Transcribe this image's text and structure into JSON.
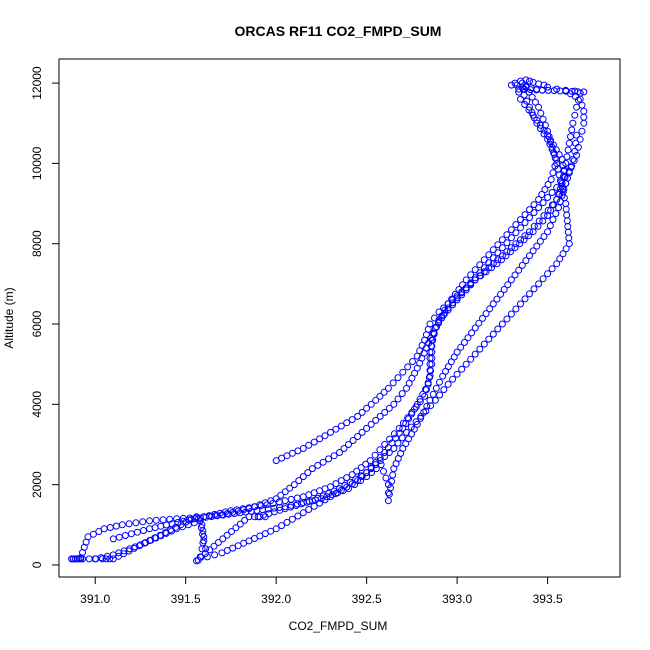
{
  "chart_data": {
    "type": "scatter",
    "title": "ORCAS RF11 CO2_FMPD_SUM",
    "xlabel": "CO2_FMPD_SUM",
    "ylabel": "Altitude (m)",
    "xlim": [
      390.8,
      393.9
    ],
    "ylim": [
      -300,
      12600
    ],
    "x_ticks": [
      391.0,
      391.5,
      392.0,
      392.5,
      393.0,
      393.5
    ],
    "x_tick_labels": [
      "391.0",
      "391.5",
      "392.0",
      "392.5",
      "393.0",
      "393.5"
    ],
    "y_ticks": [
      0,
      2000,
      4000,
      6000,
      8000,
      10000,
      12000
    ],
    "y_tick_labels": [
      "0",
      "2000",
      "4000",
      "6000",
      "8000",
      "10000",
      "12000"
    ],
    "grid": false,
    "legend": "none",
    "marker": "open-circle",
    "color": "#0000ff",
    "series": [
      {
        "x": [
          390.87,
          390.92,
          390.96,
          391.05,
          391.15,
          391.3,
          391.45,
          391.56,
          391.6,
          391.7,
          391.85,
          392.0,
          392.1,
          392.2,
          392.35,
          392.45,
          392.55,
          392.65,
          392.72,
          392.78,
          392.83,
          392.88,
          392.95,
          393.05,
          393.15,
          393.25,
          393.35,
          393.45,
          393.55,
          393.62,
          393.66,
          393.68,
          393.7,
          393.7,
          393.68,
          393.6
        ],
        "y": [
          150,
          180,
          700,
          900,
          1000,
          1100,
          1150,
          1180,
          1200,
          1250,
          1400,
          1650,
          2000,
          2400,
          2800,
          3200,
          3600,
          4000,
          4400,
          4900,
          5400,
          5900,
          6400,
          6900,
          7400,
          7900,
          8400,
          8900,
          9400,
          9800,
          10200,
          10600,
          11000,
          11300,
          11600,
          11800
        ]
      },
      {
        "x": [
          391.0,
          391.1,
          391.25,
          391.45,
          391.58,
          391.6,
          391.62,
          391.7,
          391.85,
          392.0,
          392.15,
          392.3,
          392.45,
          392.55,
          392.65,
          392.72,
          392.8,
          392.88,
          392.95,
          393.05,
          393.15,
          393.25,
          393.35,
          393.45,
          393.55,
          393.62,
          393.6,
          393.55,
          393.5,
          393.45,
          393.38
        ],
        "y": [
          150,
          250,
          500,
          900,
          1100,
          600,
          200,
          300,
          600,
          900,
          1300,
          1700,
          2100,
          2500,
          2900,
          3300,
          3700,
          4100,
          4500,
          5000,
          5500,
          6000,
          6500,
          7000,
          7500,
          8000,
          9000,
          10000,
          10800,
          11400,
          11900
        ]
      },
      {
        "x": [
          391.1,
          391.3,
          391.55,
          391.8,
          392.05,
          392.25,
          392.4,
          392.5,
          392.58,
          392.62,
          392.62,
          392.65,
          392.7,
          392.78,
          392.85,
          392.92,
          393.0,
          393.1,
          393.2,
          393.3,
          393.4,
          393.5,
          393.56,
          393.6,
          393.58,
          393.5,
          393.42,
          393.35,
          393.33
        ],
        "y": [
          650,
          900,
          1150,
          1300,
          1450,
          1650,
          1900,
          2200,
          2500,
          2000,
          1600,
          2400,
          2900,
          3500,
          4100,
          4700,
          5300,
          5900,
          6500,
          7100,
          7700,
          8300,
          8900,
          9500,
          10100,
          10700,
          11200,
          11600,
          11950
        ]
      },
      {
        "x": [
          391.6,
          391.75,
          391.95,
          392.15,
          392.3,
          392.42,
          392.52,
          392.6,
          392.68,
          392.75,
          392.82,
          392.85,
          392.85,
          392.88,
          392.95,
          393.05,
          393.15,
          393.25,
          393.35,
          393.45,
          393.52,
          393.55,
          393.5,
          393.44,
          393.4,
          393.37,
          393.36
        ],
        "y": [
          1200,
          1350,
          1500,
          1700,
          1950,
          2250,
          2600,
          3000,
          3400,
          3800,
          4200,
          4700,
          5300,
          5900,
          6500,
          7100,
          7600,
          8100,
          8600,
          9100,
          9600,
          10100,
          10600,
          11000,
          11400,
          11700,
          12000
        ]
      },
      {
        "x": [
          391.9,
          392.05,
          392.2,
          392.35,
          392.5,
          392.6,
          392.7,
          392.78,
          392.84,
          392.86,
          392.86,
          392.9,
          393.0,
          393.1,
          393.22,
          393.32,
          393.42,
          393.5,
          393.55,
          393.58,
          393.6,
          393.62,
          393.64,
          393.66,
          393.68
        ],
        "y": [
          1200,
          1400,
          1600,
          1900,
          2300,
          2800,
          3400,
          4000,
          4500,
          5000,
          5600,
          6100,
          6600,
          7100,
          7500,
          7900,
          8300,
          8700,
          9100,
          9500,
          10000,
          10500,
          11000,
          11400,
          11750
        ]
      },
      {
        "x": [
          392.0,
          392.15,
          392.3,
          392.45,
          392.55,
          392.62,
          392.7,
          392.78,
          392.82,
          392.85,
          392.9,
          393.0,
          393.1,
          393.2,
          393.3,
          393.4,
          393.48,
          393.55,
          393.6,
          393.63,
          393.65,
          393.66
        ],
        "y": [
          2600,
          2900,
          3300,
          3700,
          4100,
          4400,
          4800,
          5200,
          5600,
          6000,
          6300,
          6700,
          7100,
          7500,
          7900,
          8300,
          8700,
          9100,
          9500,
          9900,
          10300,
          10700
        ]
      },
      {
        "x": [
          393.3,
          393.32,
          393.35,
          393.38,
          393.4,
          393.42,
          393.45,
          393.48,
          393.5,
          393.55,
          393.6,
          393.65,
          393.7,
          393.34,
          393.36,
          393.38,
          393.41,
          393.44,
          393.47
        ],
        "y": [
          11950,
          12000,
          12050,
          12080,
          12050,
          12020,
          11980,
          11950,
          11900,
          11850,
          11820,
          11800,
          11780,
          11850,
          11900,
          11920,
          11880,
          11850,
          11820
        ]
      },
      {
        "x": [
          390.87,
          390.88,
          390.89,
          390.9,
          390.91,
          390.92,
          390.93,
          391.04,
          391.06,
          391.08,
          391.1,
          391.56,
          391.57,
          391.58,
          391.59,
          391.6,
          391.59,
          391.58,
          391.57,
          391.56,
          391.85,
          391.88,
          391.91,
          391.94
        ],
        "y": [
          150,
          150,
          150,
          150,
          150,
          150,
          150,
          150,
          150,
          150,
          150,
          1200,
          1150,
          1100,
          1000,
          700,
          400,
          200,
          120,
          100,
          1200,
          1200,
          1200,
          1200
        ]
      }
    ]
  }
}
